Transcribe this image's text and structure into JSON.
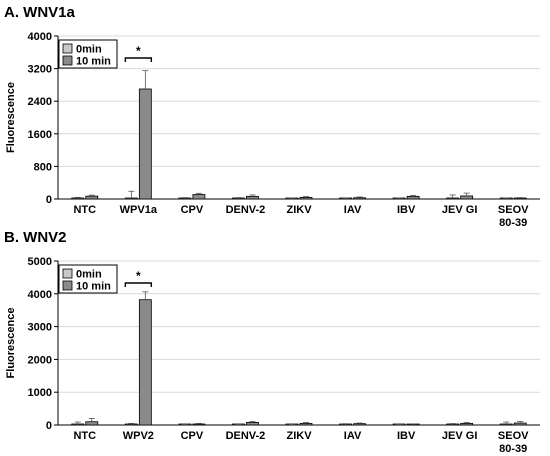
{
  "colors": {
    "series_0min": "#c8c8c8",
    "series_10min": "#8a8a8a",
    "grid": "#d9d9d9",
    "axis": "#000000"
  },
  "chart_data": [
    {
      "type": "bar",
      "title": "A. WNV1a",
      "ylabel": "Fluorescence",
      "xlabel": "",
      "ylim": [
        0,
        4000
      ],
      "yticks": [
        "0",
        "800",
        "1600",
        "2400",
        "3200",
        "4000"
      ],
      "grid": true,
      "legend_position": "top-left",
      "categories": [
        "NTC",
        "WPV1a",
        "CPV",
        "DENV-2",
        "ZIKV",
        "IAV",
        "IBV",
        "JEV GI",
        "SEOV\n80-39"
      ],
      "series": [
        {
          "name": "0min",
          "values": [
            10,
            20,
            15,
            10,
            8,
            5,
            5,
            20,
            8
          ],
          "errors": [
            30,
            170,
            20,
            25,
            15,
            15,
            20,
            80,
            15
          ]
        },
        {
          "name": "10 min",
          "values": [
            70,
            2700,
            110,
            65,
            40,
            30,
            65,
            75,
            20
          ],
          "errors": [
            25,
            450,
            30,
            35,
            20,
            20,
            25,
            70,
            15
          ]
        }
      ],
      "annotation": {
        "text": "*",
        "between": "WPV1a"
      }
    },
    {
      "type": "bar",
      "title": "B. WNV2",
      "ylabel": "Fluorescence",
      "xlabel": "",
      "ylim": [
        0,
        5000
      ],
      "yticks": [
        "0",
        "1000",
        "2000",
        "3000",
        "4000",
        "5000"
      ],
      "grid": true,
      "legend_position": "top-left",
      "categories": [
        "NTC",
        "WPV2",
        "CPV",
        "DENV-2",
        "ZIKV",
        "IAV",
        "IBV",
        "JEV GI",
        "SEOV\n80-39"
      ],
      "series": [
        {
          "name": "0min",
          "values": [
            20,
            20,
            5,
            5,
            5,
            10,
            5,
            15,
            20
          ],
          "errors": [
            70,
            30,
            15,
            15,
            15,
            30,
            15,
            30,
            70
          ]
        },
        {
          "name": "10 min",
          "values": [
            100,
            3820,
            30,
            80,
            50,
            40,
            20,
            50,
            60
          ],
          "errors": [
            100,
            240,
            20,
            30,
            30,
            20,
            15,
            30,
            50
          ]
        }
      ],
      "annotation": {
        "text": "*",
        "between": "WPV2"
      }
    }
  ]
}
